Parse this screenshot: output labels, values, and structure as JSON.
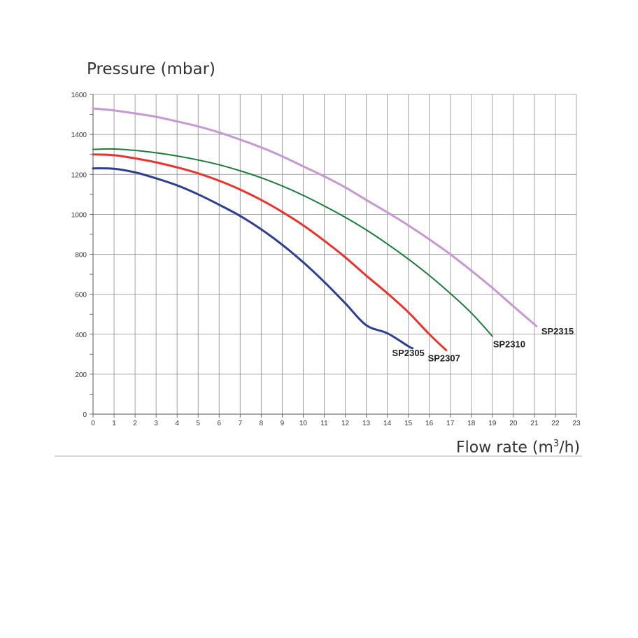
{
  "chart_data": {
    "type": "line",
    "title": "",
    "ylabel": "Pressure (mbar)",
    "xlabel_main": "Flow rate (m",
    "xlabel_sup": "3",
    "xlabel_end": "/h)",
    "xlim": [
      0,
      23
    ],
    "ylim": [
      0,
      1600
    ],
    "xticks": [
      0,
      1,
      2,
      3,
      4,
      5,
      6,
      7,
      8,
      9,
      10,
      11,
      12,
      13,
      14,
      15,
      16,
      17,
      18,
      19,
      20,
      21,
      22,
      23
    ],
    "yticks": [
      0,
      200,
      400,
      600,
      800,
      1000,
      1200,
      1400,
      1600
    ],
    "grid": true,
    "series": [
      {
        "name": "SP2305",
        "color": "#2e3f8f",
        "x": [
          0,
          1,
          2,
          3,
          4,
          5,
          6,
          7,
          8,
          9,
          10,
          11,
          12,
          13,
          14,
          15,
          15.2
        ],
        "y": [
          1230,
          1228,
          1210,
          1180,
          1145,
          1100,
          1048,
          992,
          925,
          848,
          760,
          662,
          555,
          445,
          405,
          340,
          330
        ]
      },
      {
        "name": "SP2307",
        "color": "#e8342c",
        "x": [
          0,
          1,
          2,
          3,
          4,
          5,
          6,
          7,
          8,
          9,
          10,
          11,
          12,
          13,
          14,
          15,
          16,
          16.8
        ],
        "y": [
          1300,
          1296,
          1280,
          1260,
          1235,
          1205,
          1168,
          1124,
          1072,
          1012,
          945,
          868,
          785,
          693,
          605,
          510,
          400,
          320
        ]
      },
      {
        "name": "SP2310",
        "color": "#1f7a3c",
        "x": [
          0,
          1,
          2,
          3,
          4,
          5,
          6,
          7,
          8,
          9,
          10,
          11,
          12,
          13,
          14,
          15,
          16,
          17,
          18,
          19
        ],
        "y": [
          1325,
          1327,
          1320,
          1308,
          1292,
          1272,
          1248,
          1218,
          1183,
          1142,
          1095,
          1042,
          985,
          922,
          852,
          776,
          694,
          604,
          506,
          390
        ]
      },
      {
        "name": "SP2315",
        "color": "#c59ad0",
        "x": [
          0,
          1,
          2,
          3,
          4,
          5,
          6,
          7,
          8,
          9,
          10,
          11,
          12,
          13,
          14,
          15,
          16,
          17,
          18,
          19,
          20,
          21.1
        ],
        "y": [
          1530,
          1520,
          1505,
          1488,
          1465,
          1440,
          1410,
          1374,
          1335,
          1290,
          1240,
          1190,
          1135,
          1072,
          1010,
          945,
          875,
          800,
          718,
          632,
          540,
          440
        ]
      }
    ],
    "annotations": [
      {
        "text": "SP2305",
        "x": 15,
        "y": 290
      },
      {
        "text": "SP2307",
        "x": 16.7,
        "y": 265
      },
      {
        "text": "SP2310",
        "x": 19.8,
        "y": 335
      },
      {
        "text": "SP2315",
        "x": 22.1,
        "y": 400
      }
    ]
  }
}
